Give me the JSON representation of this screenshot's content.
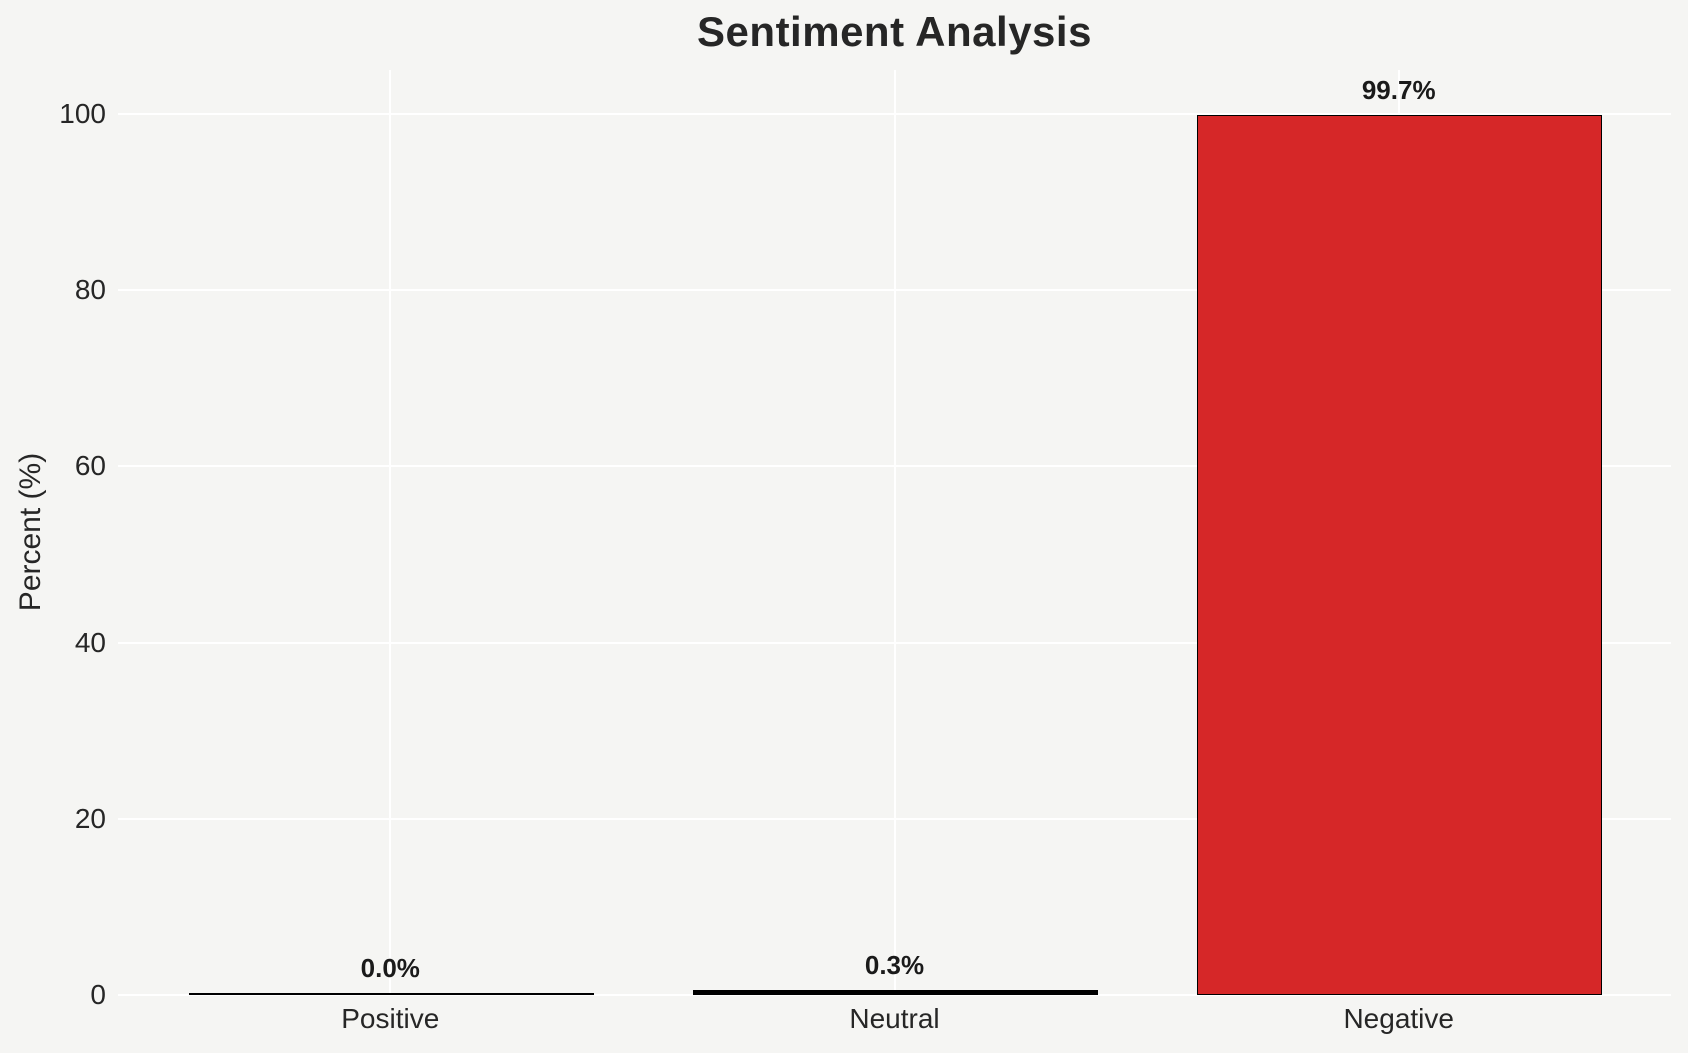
{
  "chart_data": {
    "type": "bar",
    "title": "Sentiment Analysis",
    "xlabel": "",
    "ylabel": "Percent (%)",
    "categories": [
      "Positive",
      "Neutral",
      "Negative"
    ],
    "values": [
      0.0,
      0.3,
      99.7
    ],
    "bar_value_labels": [
      "0.0%",
      "0.3%",
      "99.7%"
    ],
    "bar_fill_colors": [
      "#000000",
      "#000000",
      "#d62728"
    ],
    "bar_edge_color": "#000000",
    "yticks": [
      0,
      20,
      40,
      60,
      80,
      100
    ],
    "ytick_labels": [
      "0",
      "20",
      "40",
      "60",
      "80",
      "100"
    ],
    "ylim": [
      0,
      105
    ],
    "grid": "on",
    "grid_color": "#ffffff",
    "legend": "none",
    "background_color": "#f5f5f3",
    "text_color": "#262626",
    "value_label_color": "#1a1a1a"
  }
}
